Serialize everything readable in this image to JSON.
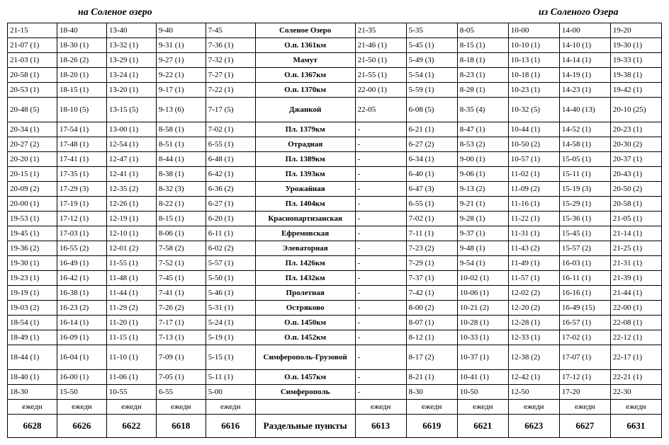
{
  "title_left": "на Соленое озеро",
  "title_right": "из Соленого Озера",
  "stations": [
    "Соленое Озеро",
    "О.п. 1361км",
    "Мамут",
    "О.п. 1367км",
    "О.п. 1370км",
    "Джанкой",
    "Пл. 1379км",
    "Отрадная",
    "Пл. 1389км",
    "Пл. 1393км",
    "Урожайная",
    "Пл. 1404км",
    "Краснопартизанская",
    "Ефремовская",
    "Элеваторная",
    "Пл. 1426км",
    "Пл. 1432км",
    "Пролетная",
    "Остряково",
    "О.п. 1450км",
    "О.п. 1452км",
    "Симферополь-Грузовой",
    "О.п. 1457км",
    "Симферополь"
  ],
  "left_cols": [
    [
      "21-15",
      "21-07 (1)",
      "21-03 (1)",
      "20-58 (1)",
      "20-53 (1)",
      "20-48 (5)",
      "20-34 (1)",
      "20-27 (2)",
      "20-20 (1)",
      "20-15 (1)",
      "20-09 (2)",
      "20-00 (1)",
      "19-53 (1)",
      "19-45 (1)",
      "19-36 (2)",
      "19-30 (1)",
      "19-23 (1)",
      "19-19 (1)",
      "19-03 (2)",
      "18-54 (1)",
      "18-49 (1)",
      "18-44 (1)",
      "18-40 (1)",
      "18-30"
    ],
    [
      "18-40",
      "18-30 (1)",
      "18-26 (2)",
      "18-20 (1)",
      "18-15 (1)",
      "18-10 (5)",
      "17-54 (1)",
      "17-48 (1)",
      "17-41 (1)",
      "17-35 (1)",
      "17-29 (3)",
      "17-19 (1)",
      "17-12 (1)",
      "17-03 (1)",
      "16-55 (2)",
      "16-49 (1)",
      "16-42 (1)",
      "16-38 (1)",
      "16-23 (2)",
      "16-14 (1)",
      "16-09 (1)",
      "16-04 (1)",
      "16-00 (1)",
      "15-50"
    ],
    [
      "13-40",
      "13-32 (1)",
      "13-29 (1)",
      "13-24 (1)",
      "13-20 (1)",
      "13-15 (5)",
      "13-00 (1)",
      "12-54 (1)",
      "12-47 (1)",
      "12-41 (1)",
      "12-35 (2)",
      "12-26 (1)",
      "12-19 (1)",
      "12-10 (1)",
      "12-01 (2)",
      "11-55 (1)",
      "11-48 (1)",
      "11-44 (1)",
      "11-29 (2)",
      "11-20 (1)",
      "11-15 (1)",
      "11-10 (1)",
      "11-06 (1)",
      "10-55"
    ],
    [
      "9-40",
      "9-31 (1)",
      "9-27 (1)",
      "9-22 (1)",
      "9-17 (1)",
      "9-13 (6)",
      "8-58 (1)",
      "8-51 (1)",
      "8-44 (1)",
      "8-38 (1)",
      "8-32 (3)",
      "8-22 (1)",
      "8-15 (1)",
      "8-06 (1)",
      "7-58 (2)",
      "7-52 (1)",
      "7-45 (1)",
      "7-41 (1)",
      "7-26 (2)",
      "7-17 (1)",
      "7-13 (1)",
      "7-09 (1)",
      "7-05 (1)",
      "6-55"
    ],
    [
      "7-45",
      "7-36 (1)",
      "7-32 (1)",
      "7-27 (1)",
      "7-22 (1)",
      "7-17 (5)",
      "7-02 (1)",
      "6-55 (1)",
      "6-48 (1)",
      "6-42 (1)",
      "6-36 (2)",
      "6-27 (1)",
      "6-20 (1)",
      "6-11 (1)",
      "6-02 (2)",
      "5-57 (1)",
      "5-50 (1)",
      "5-46 (1)",
      "5-31 (1)",
      "5-24 (1)",
      "5-19 (1)",
      "5-15 (1)",
      "5-11 (1)",
      "5-00"
    ]
  ],
  "right_cols": [
    [
      "21-35",
      "21-46 (1)",
      "21-50 (1)",
      "21-55 (1)",
      "22-00 (1)",
      "22-05",
      "-",
      "-",
      "-",
      "-",
      "-",
      "-",
      "-",
      "-",
      "-",
      "-",
      "-",
      "-",
      "-",
      "-",
      "-",
      "-",
      "-",
      "-"
    ],
    [
      "5-35",
      "5-45 (1)",
      "5-49 (3)",
      "5-54 (1)",
      "5-59 (1)",
      "6-08 (5)",
      "6-21 (1)",
      "6-27 (2)",
      "6-34 (1)",
      "6-40 (1)",
      "6-47 (3)",
      "6-55 (1)",
      "7-02 (1)",
      "7-11 (1)",
      "7-23 (2)",
      "7-29 (1)",
      "7-37 (1)",
      "7-42 (1)",
      "8-00 (2)",
      "8-07 (1)",
      "8-12 (1)",
      "8-17 (2)",
      "8-21 (1)",
      "8-30"
    ],
    [
      "8-05",
      "8-15 (1)",
      "8-18 (1)",
      "8-23 (1)",
      "8-28 (1)",
      "8-35 (4)",
      "8-47 (1)",
      "8-53 (2)",
      "9-00 (1)",
      "9-06 (1)",
      "9-13 (2)",
      "9-21 (1)",
      "9-28 (1)",
      "9-37 (1)",
      "9-48 (1)",
      "9-54 (1)",
      "10-02 (1)",
      "10-06 (1)",
      "10-21 (2)",
      "10-28 (1)",
      "10-33 (1)",
      "10-37 (1)",
      "10-41 (1)",
      "10-50"
    ],
    [
      "10-00",
      "10-10 (1)",
      "10-13 (1)",
      "10-18 (1)",
      "10-23 (1)",
      "10-32 (5)",
      "10-44 (1)",
      "10-50 (2)",
      "10-57 (1)",
      "11-02 (1)",
      "11-09 (2)",
      "11-16 (1)",
      "11-22 (1)",
      "11-31 (1)",
      "11-43 (2)",
      "11-49 (1)",
      "11-57 (1)",
      "12-02 (2)",
      "12-20 (2)",
      "12-28 (1)",
      "12-33 (1)",
      "12-38 (2)",
      "12-42 (1)",
      "12-50"
    ],
    [
      "14-00",
      "14-10 (1)",
      "14-14 (1)",
      "14-19 (1)",
      "14-23 (1)",
      "14-40 (13)",
      "14-52 (1)",
      "14-58 (1)",
      "15-05 (1)",
      "15-11 (1)",
      "15-19 (3)",
      "15-29 (1)",
      "15-36 (1)",
      "15-45 (1)",
      "15-57 (2)",
      "16-03 (1)",
      "16-11 (1)",
      "16-16 (1)",
      "16-49 (15)",
      "16-57 (1)",
      "17-02 (1)",
      "17-07 (1)",
      "17-12 (1)",
      "17-20"
    ],
    [
      "19-20",
      "19-30 (1)",
      "19-33 (1)",
      "19-38 (1)",
      "19-42 (1)",
      "20-10 (25)",
      "20-23 (1)",
      "20-30 (2)",
      "20-37 (1)",
      "20-43 (1)",
      "20-50 (2)",
      "20-58 (1)",
      "21-05 (1)",
      "21-14 (1)",
      "21-25 (1)",
      "21-31 (1)",
      "21-39 (1)",
      "21-44 (1)",
      "22-00 (1)",
      "22-08 (1)",
      "22-12 (1)",
      "22-17 (1)",
      "22-21 (1)",
      "22-30"
    ]
  ],
  "sched_left": [
    "ежедн",
    "ежедн",
    "ежедн",
    "ежедн",
    "ежедн"
  ],
  "sched_right": [
    "ежедн",
    "ежедн",
    "ежедн",
    "ежедн",
    "ежедн",
    "ежедн"
  ],
  "nums_left": [
    "6628",
    "6626",
    "6622",
    "6618",
    "6616"
  ],
  "nums_right": [
    "6613",
    "6619",
    "6621",
    "6623",
    "6627",
    "6631"
  ],
  "points_label": "Раздельные пункты",
  "tall_rows": [
    5,
    21
  ]
}
